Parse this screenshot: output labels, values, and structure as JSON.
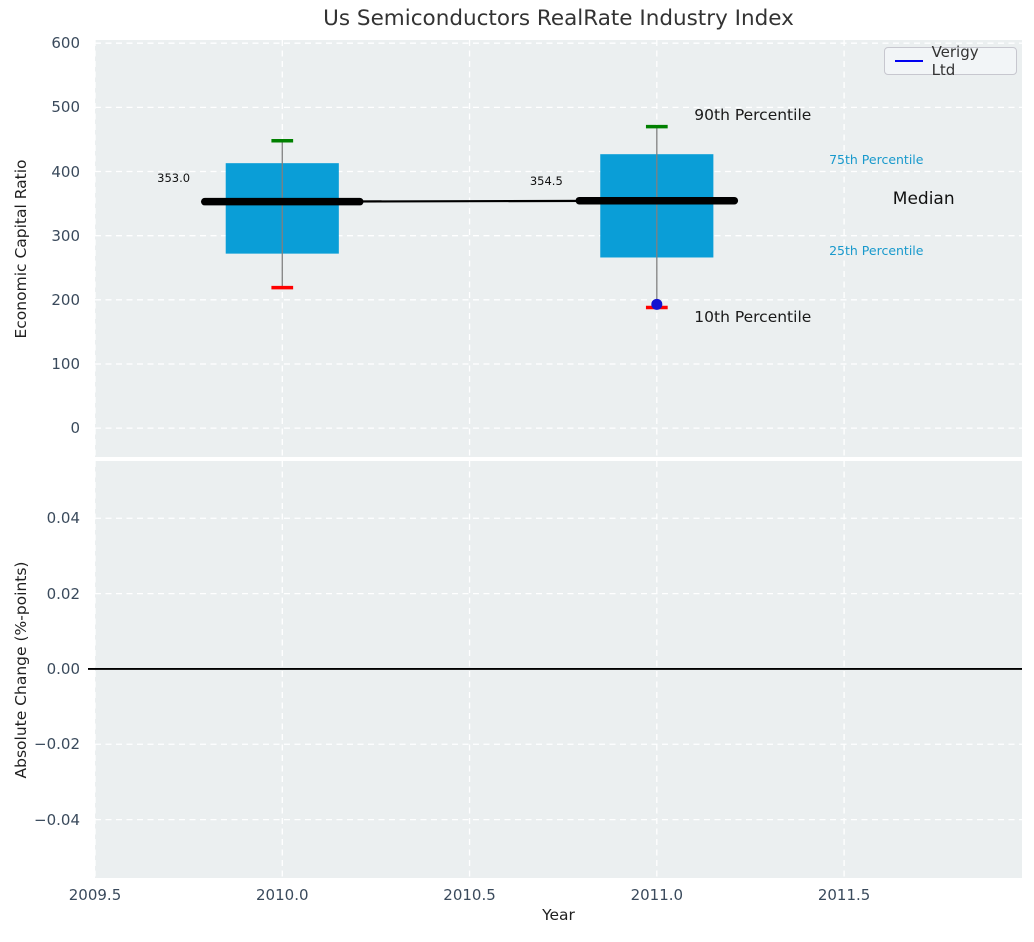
{
  "style": {
    "plot_bg": "#ebeff0",
    "grid_color": "#ffffff",
    "box_fill": "#0a9ed7",
    "whisker_color": "#808080",
    "cap_top_color": "#008000",
    "cap_bottom_color": "#ff0000",
    "median_color": "#000000",
    "trend_line_color": "#000000",
    "point_color": "#1212d0",
    "legend_line_color": "#0000f0",
    "zero_line_color": "#000000",
    "tick_label_color": "#3a4a5c",
    "axis_label_color": "#1f1f1f",
    "title_color": "#333333",
    "percentile_label_color": "#1899cc"
  },
  "chart_data": {
    "type": "boxplot",
    "title": "Us Semiconductors RealRate Industry Index",
    "xlabel": "Year",
    "xticks": [
      2009.5,
      2010.0,
      2010.5,
      2011.0,
      2011.5
    ],
    "xtick_labels": [
      "2009.5",
      "2010.0",
      "2010.5",
      "2011.0",
      "2011.5"
    ],
    "xlim": [
      2009.5,
      2011.975
    ],
    "subplots": [
      {
        "id": "economic-capital-ratio",
        "type": "boxplot",
        "ylabel": "Economic Capital Ratio",
        "ylim": [
          -45,
          605
        ],
        "ytick_values": [
          0,
          100,
          200,
          300,
          400,
          500,
          600
        ],
        "ytick_labels": [
          "0",
          "100",
          "200",
          "300",
          "400",
          "500",
          "600"
        ],
        "grid": true,
        "legend": {
          "label": "Verigy Ltd",
          "position": "upper right"
        },
        "boxes": [
          {
            "x": 2010,
            "p10": 219,
            "q1": 272,
            "median": 353.0,
            "q3": 413,
            "p90": 448
          },
          {
            "x": 2011,
            "p10": 188,
            "q1": 266,
            "median": 354.5,
            "q3": 427,
            "p90": 470
          }
        ],
        "median_trend": {
          "x": [
            2010,
            2011
          ],
          "y": [
            353.0,
            354.5
          ]
        },
        "points": [
          {
            "series": "Verigy Ltd",
            "x": 2011,
            "y": 193
          }
        ],
        "annotations": [
          {
            "name": "annotation-90th-percentile",
            "text": "90th Percentile",
            "x": 2011.1,
            "y": 487,
            "size": 15.5,
            "color": "#1a1a1a",
            "align": "left"
          },
          {
            "name": "annotation-10th-percentile",
            "text": "10th Percentile",
            "x": 2011.1,
            "y": 172,
            "size": 15.5,
            "color": "#1a1a1a",
            "align": "left"
          },
          {
            "name": "annotation-75th-percentile",
            "text": "75th Percentile",
            "x": 2011.46,
            "y": 419,
            "size": 12.5,
            "color": "#1899cc",
            "align": "left"
          },
          {
            "name": "annotation-median",
            "text": "Median",
            "x": 2011.63,
            "y": 357,
            "size": 17,
            "color": "#111111",
            "align": "left"
          },
          {
            "name": "annotation-25th-percentile",
            "text": "25th Percentile",
            "x": 2011.46,
            "y": 277,
            "size": 12.5,
            "color": "#1899cc",
            "align": "left"
          },
          {
            "name": "annotation-median-value-2010",
            "text": "353.0",
            "x": 2009.71,
            "y": 389,
            "size": 11.5,
            "color": "#111111",
            "align": "center"
          },
          {
            "name": "annotation-median-value-2011",
            "text": "354.5",
            "x": 2010.705,
            "y": 385,
            "size": 11.5,
            "color": "#111111",
            "align": "center"
          }
        ],
        "box_halfwidth": 0.151,
        "cap_halfwidth": 0.029,
        "median_halfwidth": 0.207
      },
      {
        "id": "absolute-change",
        "type": "line",
        "ylabel": "Absolute Change (%-points)",
        "ylim": [
          -0.0555,
          0.0552
        ],
        "ytick_values": [
          0.04,
          0.02,
          0,
          -0.02,
          -0.04
        ],
        "ytick_labels": [
          "0.04",
          "0.02",
          "0.00",
          "−0.02",
          "−0.04"
        ],
        "grid": true,
        "zero_line": true,
        "series": []
      }
    ]
  }
}
